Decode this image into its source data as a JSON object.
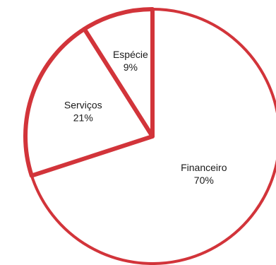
{
  "chart_data": {
    "type": "pie",
    "categories": [
      "Financeiro",
      "Serviços",
      "Espécie"
    ],
    "values": [
      70,
      21,
      9
    ],
    "value_labels": [
      "70%",
      "21%",
      "9%"
    ],
    "colors": {
      "outline": "#d2343a",
      "fill": "#ffffff",
      "label": "#1a1a1a"
    },
    "start_angle_deg": 0,
    "direction": "clockwise",
    "legend": "none"
  }
}
